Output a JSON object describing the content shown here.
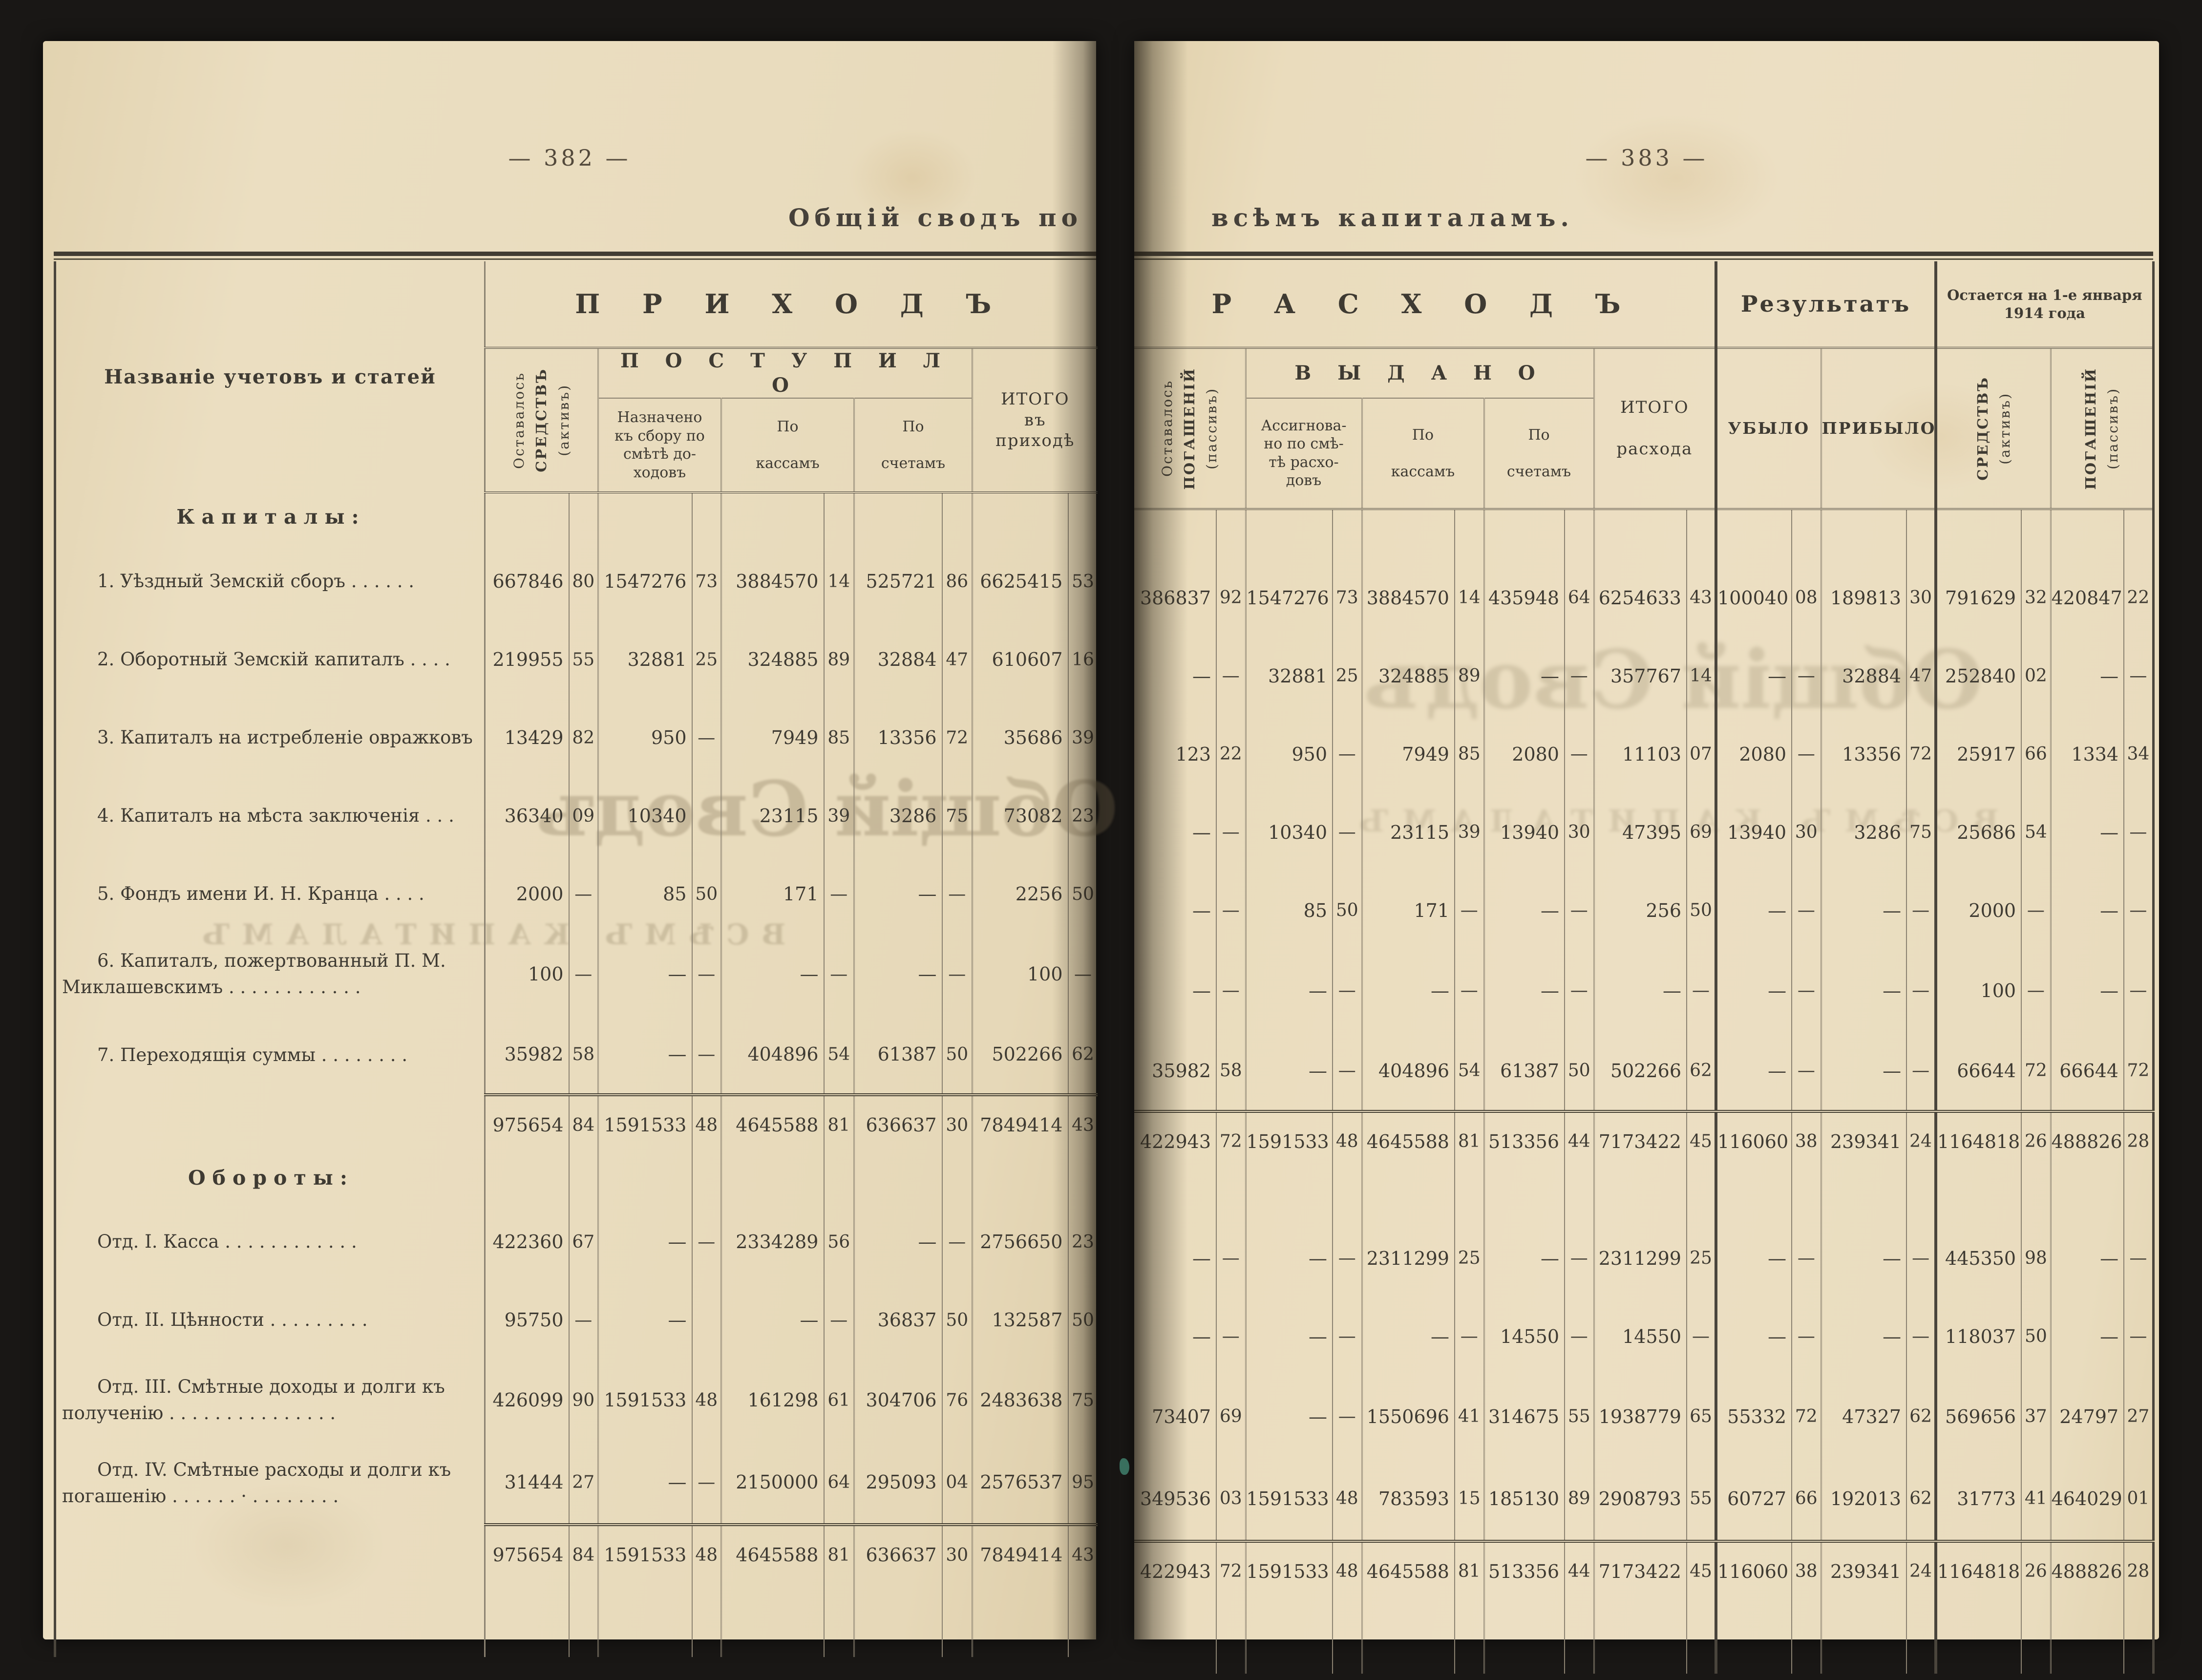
{
  "page_left": {
    "page_number": "— 382 —",
    "title_part": "Общій  сводъ  по",
    "header": {
      "name_col": "Названіе  учетовъ  и  статей",
      "group": "П Р И Х О Д Ъ",
      "col_remain": [
        "Оставалось",
        "СРЕДСТВЪ",
        "(активъ)"
      ],
      "subgroup": "П О С Т У П И Л О",
      "col_assigned": "Назначено\nкъ сбору  по\nсмѣтѣ  до-\nходовъ",
      "col_cash": "По\n\nкассамъ",
      "col_accounts": "По\n\nсчетамъ",
      "col_total": "ИТОГО\nвъ\nприходѣ"
    }
  },
  "page_right": {
    "page_number": "— 383 —",
    "title_part": "всѣмъ  капиталамъ.",
    "header": {
      "group": "Р А С Х О Д Ъ",
      "result_group": "Результатъ",
      "remain_group": "Остается на 1-е января\n1914 года",
      "col_remain": [
        "Оставалось",
        "ПОГАШЕНІЙ",
        "(пассивъ)"
      ],
      "subgroup": "В Ы Д А Н О",
      "col_assigned": "Ассигнова-\nно по смѣ-\nтѣ расхо-\nдовъ",
      "col_cash": "По\n\nкассамъ",
      "col_accounts": "По\n\nсчетамъ",
      "col_total": "ИТОГО\n\nрасхода",
      "col_decrease": "УБЫЛО",
      "col_increase": "ПРИБЫЛО",
      "col_rem_assets": [
        "СРЕДСТВЪ",
        "(активъ)"
      ],
      "col_rem_liab": [
        "ПОГАШЕНІЙ",
        "(пассивъ)"
      ]
    }
  },
  "rows": [
    {
      "type": "section",
      "label": "Капиталы:",
      "left": [],
      "right": []
    },
    {
      "type": "data",
      "label": "1. Уѣздный  Земскій  сборъ  .  .  .  .  .  .",
      "left": [
        [
          "667846",
          "80"
        ],
        [
          "1547276",
          "73"
        ],
        [
          "3884570",
          "14"
        ],
        [
          "525721",
          "86"
        ],
        [
          "6625415",
          "53"
        ]
      ],
      "right": [
        [
          "386837",
          "92"
        ],
        [
          "1547276",
          "73"
        ],
        [
          "3884570",
          "14"
        ],
        [
          "435948",
          "64"
        ],
        [
          "6254633",
          "43"
        ],
        [
          "100040",
          "08"
        ],
        [
          "189813",
          "30"
        ],
        [
          "791629",
          "32"
        ],
        [
          "420847",
          "22"
        ]
      ]
    },
    {
      "type": "data",
      "label": "2. Оборотный  Земскій  капиталъ .  .  .  .",
      "left": [
        [
          "219955",
          "55"
        ],
        [
          "32881",
          "25"
        ],
        [
          "324885",
          "89"
        ],
        [
          "32884",
          "47"
        ],
        [
          "610607",
          "16"
        ]
      ],
      "right": [
        [
          "—",
          "—"
        ],
        [
          "32881",
          "25"
        ],
        [
          "324885",
          "89"
        ],
        [
          "—",
          "—"
        ],
        [
          "357767",
          "14"
        ],
        [
          "—",
          "—"
        ],
        [
          "32884",
          "47"
        ],
        [
          "252840",
          "02"
        ],
        [
          "—",
          "—"
        ]
      ]
    },
    {
      "type": "data",
      "label": "3. Капиталъ  на  истребленіе  овражковъ",
      "left": [
        [
          "13429",
          "82"
        ],
        [
          "950",
          "—"
        ],
        [
          "7949",
          "85"
        ],
        [
          "13356",
          "72"
        ],
        [
          "35686",
          "39"
        ]
      ],
      "right": [
        [
          "123",
          "22"
        ],
        [
          "950",
          "—"
        ],
        [
          "7949",
          "85"
        ],
        [
          "2080",
          "—"
        ],
        [
          "11103",
          "07"
        ],
        [
          "2080",
          "—"
        ],
        [
          "13356",
          "72"
        ],
        [
          "25917",
          "66"
        ],
        [
          "1334",
          "34"
        ]
      ]
    },
    {
      "type": "data",
      "label": "4. Капиталъ  на  мѣста заключенія .  .  .",
      "left": [
        [
          "36340",
          "09"
        ],
        [
          "10340",
          ""
        ],
        [
          "23115",
          "39"
        ],
        [
          "3286",
          "75"
        ],
        [
          "73082",
          "23"
        ]
      ],
      "right": [
        [
          "—",
          "—"
        ],
        [
          "10340",
          "—"
        ],
        [
          "23115",
          "39"
        ],
        [
          "13940",
          "30"
        ],
        [
          "47395",
          "69"
        ],
        [
          "13940",
          "30"
        ],
        [
          "3286",
          "75"
        ],
        [
          "25686",
          "54"
        ],
        [
          "—",
          "—"
        ]
      ]
    },
    {
      "type": "data",
      "label": "5. Фондъ  имени  И.  Н.  Кранца  .  .  .  .",
      "left": [
        [
          "2000",
          "—"
        ],
        [
          "85",
          "50"
        ],
        [
          "171",
          "—"
        ],
        [
          "—",
          "—"
        ],
        [
          "2256",
          "50"
        ]
      ],
      "right": [
        [
          "—",
          "—"
        ],
        [
          "85",
          "50"
        ],
        [
          "171",
          "—"
        ],
        [
          "—",
          "—"
        ],
        [
          "256",
          "50"
        ],
        [
          "—",
          "—"
        ],
        [
          "—",
          "—"
        ],
        [
          "2000",
          "—"
        ],
        [
          "—",
          "—"
        ]
      ]
    },
    {
      "type": "data2",
      "label": "6. Капиталъ,   пожертвованный   П.   М.\nМиклашевскимъ .  .  .  .  .  .  .  .  .  .  .  .",
      "left": [
        [
          "100",
          "—"
        ],
        [
          "—",
          "—"
        ],
        [
          "—",
          "—"
        ],
        [
          "—",
          "—"
        ],
        [
          "100",
          "—"
        ]
      ],
      "right": [
        [
          "—",
          "—"
        ],
        [
          "—",
          "—"
        ],
        [
          "—",
          "—"
        ],
        [
          "—",
          "—"
        ],
        [
          "—",
          "—"
        ],
        [
          "—",
          "—"
        ],
        [
          "—",
          "—"
        ],
        [
          "100",
          "—"
        ],
        [
          "—",
          "—"
        ]
      ]
    },
    {
      "type": "data",
      "label": "7. Переходящія  суммы  .  .  .  .  .  .  .  .",
      "left": [
        [
          "35982",
          "58"
        ],
        [
          "—",
          "—"
        ],
        [
          "404896",
          "54"
        ],
        [
          "61387",
          "50"
        ],
        [
          "502266",
          "62"
        ]
      ],
      "right": [
        [
          "35982",
          "58"
        ],
        [
          "—",
          "—"
        ],
        [
          "404896",
          "54"
        ],
        [
          "61387",
          "50"
        ],
        [
          "502266",
          "62"
        ],
        [
          "—",
          "—"
        ],
        [
          "—",
          "—"
        ],
        [
          "66644",
          "72"
        ],
        [
          "66644",
          "72"
        ]
      ]
    },
    {
      "type": "total",
      "label": "",
      "left": [
        [
          "975654",
          "84"
        ],
        [
          "1591533",
          "48"
        ],
        [
          "4645588",
          "81"
        ],
        [
          "636637",
          "30"
        ],
        [
          "7849414",
          "43"
        ]
      ],
      "right": [
        [
          "422943",
          "72"
        ],
        [
          "1591533",
          "48"
        ],
        [
          "4645588",
          "81"
        ],
        [
          "513356",
          "44"
        ],
        [
          "7173422",
          "45"
        ],
        [
          "116060",
          "38"
        ],
        [
          "239341",
          "24"
        ],
        [
          "1164818",
          "26"
        ],
        [
          "488826",
          "28"
        ]
      ]
    },
    {
      "type": "section",
      "label": "Обороты:",
      "left": [],
      "right": []
    },
    {
      "type": "data",
      "label": "Отд. I.  Касса   .  .  .  .  .  .  .  .  .  .  .  .",
      "left": [
        [
          "422360",
          "67"
        ],
        [
          "—",
          "—"
        ],
        [
          "2334289",
          "56"
        ],
        [
          "—",
          "—"
        ],
        [
          "2756650",
          "23"
        ]
      ],
      "right": [
        [
          "—",
          "—"
        ],
        [
          "—",
          "—"
        ],
        [
          "2311299",
          "25"
        ],
        [
          "—",
          "—"
        ],
        [
          "2311299",
          "25"
        ],
        [
          "—",
          "—"
        ],
        [
          "—",
          "—"
        ],
        [
          "445350",
          "98"
        ],
        [
          "—",
          "—"
        ]
      ]
    },
    {
      "type": "data",
      "label": "Отд. II.  Цѣнности   .  .  .  .  .  .  .  .  .",
      "left": [
        [
          "95750",
          "—"
        ],
        [
          "—",
          ""
        ],
        [
          "—",
          "—"
        ],
        [
          "36837",
          "50"
        ],
        [
          "132587",
          "50"
        ]
      ],
      "right": [
        [
          "—",
          "—"
        ],
        [
          "—",
          "—"
        ],
        [
          "—",
          "—"
        ],
        [
          "14550",
          "—"
        ],
        [
          "14550",
          "—"
        ],
        [
          "—",
          "—"
        ],
        [
          "—",
          "—"
        ],
        [
          "118037",
          "50"
        ],
        [
          "—",
          "—"
        ]
      ]
    },
    {
      "type": "data2",
      "label": "Отд. III.  Смѣтные  доходы  и  долги  къ\nполученію  .  .  .  .  .  .  .  .  .  .  .  .  .  .  .",
      "left": [
        [
          "426099",
          "90"
        ],
        [
          "1591533",
          "48"
        ],
        [
          "161298",
          "61"
        ],
        [
          "304706",
          "76"
        ],
        [
          "2483638",
          "75"
        ]
      ],
      "right": [
        [
          "73407",
          "69"
        ],
        [
          "—",
          "—"
        ],
        [
          "1550696",
          "41"
        ],
        [
          "314675",
          "55"
        ],
        [
          "1938779",
          "65"
        ],
        [
          "55332",
          "72"
        ],
        [
          "47327",
          "62"
        ],
        [
          "569656",
          "37"
        ],
        [
          "24797",
          "27"
        ]
      ]
    },
    {
      "type": "data2",
      "label": "Отд. IV.  Смѣтные  расходы  и  долги  къ\nпогашенію .  .  .  .  .  .  ·  .  .  .  .  .  .  .  .",
      "left": [
        [
          "31444",
          "27"
        ],
        [
          "—",
          "—"
        ],
        [
          "2150000",
          "64"
        ],
        [
          "295093",
          "04"
        ],
        [
          "2576537",
          "95"
        ]
      ],
      "right": [
        [
          "349536",
          "03"
        ],
        [
          "1591533",
          "48"
        ],
        [
          "783593",
          "15"
        ],
        [
          "185130",
          "89"
        ],
        [
          "2908793",
          "55"
        ],
        [
          "60727",
          "66"
        ],
        [
          "192013",
          "62"
        ],
        [
          "31773",
          "41"
        ],
        [
          "464029",
          "01"
        ]
      ]
    },
    {
      "type": "total",
      "label": "",
      "left": [
        [
          "975654",
          "84"
        ],
        [
          "1591533",
          "48"
        ],
        [
          "4645588",
          "81"
        ],
        [
          "636637",
          "30"
        ],
        [
          "7849414",
          "43"
        ]
      ],
      "right": [
        [
          "422943",
          "72"
        ],
        [
          "1591533",
          "48"
        ],
        [
          "4645588",
          "81"
        ],
        [
          "513356",
          "44"
        ],
        [
          "7173422",
          "45"
        ],
        [
          "116060",
          "38"
        ],
        [
          "239341",
          "24"
        ],
        [
          "1164818",
          "26"
        ],
        [
          "488826",
          "28"
        ]
      ]
    },
    {
      "type": "filler",
      "label": "",
      "left": [],
      "right": []
    }
  ],
  "artifacts": {
    "ghost_title": "Общій Сводъ",
    "ghost_caps": "ВСѢМЪ КАПИТАЛАМЪ"
  },
  "colors": {
    "paper": "#e9dcbe",
    "ink": "#3e3a32",
    "background": "#191715",
    "rule": "#8b8271"
  }
}
